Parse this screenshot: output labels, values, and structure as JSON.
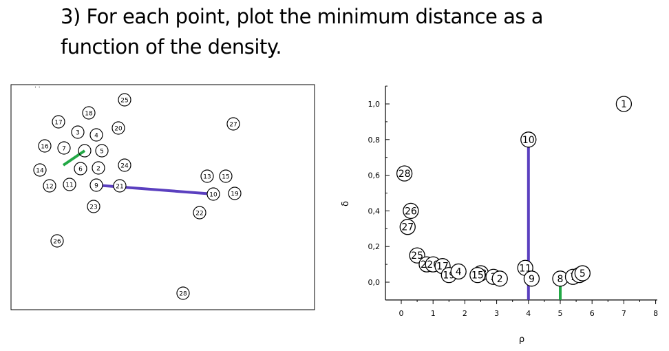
{
  "slide": {
    "title_line1": "3) For each point, plot the minimum distance  as a",
    "title_line2": "function of the density."
  },
  "scatter_points": [
    {
      "label": "25"
    },
    {
      "label": "18"
    },
    {
      "label": "17"
    },
    {
      "label": "20"
    },
    {
      "label": "27"
    },
    {
      "label": "3"
    },
    {
      "label": "4"
    },
    {
      "label": "16"
    },
    {
      "label": "7"
    },
    {
      "label": "5"
    },
    {
      "label": "24"
    },
    {
      "label": "14"
    },
    {
      "label": "6"
    },
    {
      "label": "2"
    },
    {
      "label": "13"
    },
    {
      "label": "15"
    },
    {
      "label": "12"
    },
    {
      "label": "11"
    },
    {
      "label": "9"
    },
    {
      "label": "21"
    },
    {
      "label": "10"
    },
    {
      "label": "19"
    },
    {
      "label": "23"
    },
    {
      "label": "22"
    },
    {
      "label": "26"
    },
    {
      "label": "28"
    }
  ],
  "chart_data": {
    "type": "scatter",
    "xlabel": "ρ",
    "ylabel": "δ",
    "xlim": [
      -0.5,
      8
    ],
    "ylim": [
      -0.1,
      1.1
    ],
    "x_ticks": [
      "0",
      "1",
      "2",
      "3",
      "4",
      "5",
      "6",
      "7",
      "8"
    ],
    "y_ticks": [
      "0,0",
      "0,2",
      "0,4",
      "0,6",
      "0,8",
      "1,0"
    ],
    "grid": false,
    "points": [
      {
        "label": "1",
        "x": 7.0,
        "y": 1.0
      },
      {
        "label": "10",
        "x": 4.0,
        "y": 0.8
      },
      {
        "label": "28",
        "x": 0.1,
        "y": 0.61
      },
      {
        "label": "26",
        "x": 0.3,
        "y": 0.4
      },
      {
        "label": "27",
        "x": 0.2,
        "y": 0.31
      },
      {
        "label": "25",
        "x": 0.5,
        "y": 0.15
      },
      {
        "label": "24",
        "x": 0.8,
        "y": 0.1
      },
      {
        "label": "20",
        "x": 1.0,
        "y": 0.1
      },
      {
        "label": "17",
        "x": 1.3,
        "y": 0.09
      },
      {
        "label": "19",
        "x": 1.5,
        "y": 0.04
      },
      {
        "label": "4",
        "x": 1.8,
        "y": 0.06
      },
      {
        "label": "13",
        "x": 2.5,
        "y": 0.05
      },
      {
        "label": "15",
        "x": 2.4,
        "y": 0.04
      },
      {
        "label": "3",
        "x": 2.9,
        "y": 0.03
      },
      {
        "label": "2",
        "x": 3.1,
        "y": 0.02
      },
      {
        "label": "11",
        "x": 3.9,
        "y": 0.08
      },
      {
        "label": "9",
        "x": 4.1,
        "y": 0.02
      },
      {
        "label": "8",
        "x": 5.0,
        "y": 0.02
      },
      {
        "label": "7",
        "x": 5.4,
        "y": 0.03
      },
      {
        "label": "6",
        "x": 5.6,
        "y": 0.04
      },
      {
        "label": "5",
        "x": 5.7,
        "y": 0.05
      }
    ],
    "highlight_lines": [
      {
        "color": "#5a3fbf",
        "x": 4.0,
        "y_from": -0.1,
        "y_to": 0.8
      },
      {
        "color": "#22a845",
        "x": 5.0,
        "y_from": -0.1,
        "y_to": 0.02
      }
    ]
  },
  "colors": {
    "purple": "#5a3fbf",
    "green": "#22a845"
  }
}
